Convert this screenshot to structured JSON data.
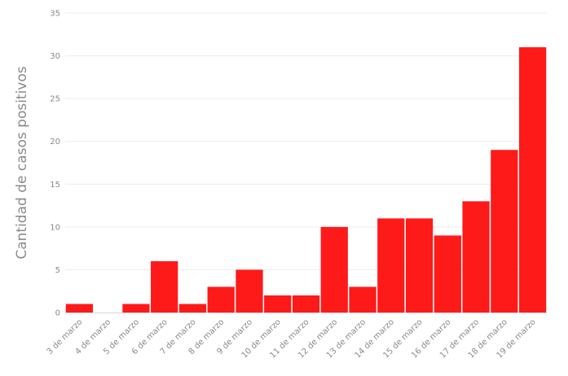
{
  "chart_data": {
    "type": "bar",
    "categories": [
      "3 de marzo",
      "4 de marzo",
      "5 de marzo",
      "6 de marzo",
      "7 de marzo",
      "8 de marzo",
      "9 de marzo",
      "10 de marzo",
      "11 de marzo",
      "12 de marzo",
      "13 de marzo",
      "14 de marzo",
      "15 de marzo",
      "16 de marzo",
      "17 de marzo",
      "18 de marzo",
      "19 de marzo"
    ],
    "values": [
      1,
      0,
      1,
      6,
      1,
      3,
      5,
      2,
      2,
      10,
      3,
      11,
      11,
      9,
      13,
      19,
      31
    ],
    "title": "",
    "xlabel": "",
    "ylabel": "Cantidad de casos positivos",
    "ylim": [
      0,
      35
    ],
    "yticks": [
      0,
      5,
      10,
      15,
      20,
      25,
      30,
      35
    ],
    "grid": true,
    "bar_color": "#ff1a1a"
  }
}
